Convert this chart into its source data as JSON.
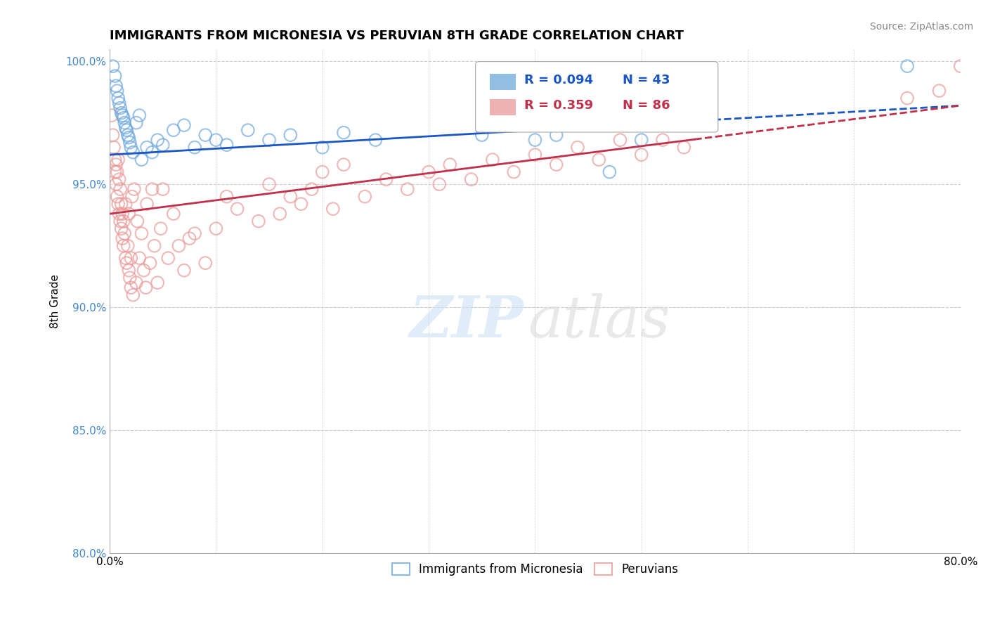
{
  "title": "IMMIGRANTS FROM MICRONESIA VS PERUVIAN 8TH GRADE CORRELATION CHART",
  "source_text": "Source: ZipAtlas.com",
  "ylabel": "8th Grade",
  "xlim": [
    0.0,
    0.8
  ],
  "ylim": [
    0.8,
    1.005
  ],
  "xticks": [
    0.0,
    0.1,
    0.2,
    0.3,
    0.4,
    0.5,
    0.6,
    0.7,
    0.8
  ],
  "xticklabels": [
    "0.0%",
    "",
    "",
    "",
    "",
    "",
    "",
    "",
    "80.0%"
  ],
  "yticks": [
    0.8,
    0.85,
    0.9,
    0.95,
    1.0
  ],
  "yticklabels": [
    "80.0%",
    "85.0%",
    "90.0%",
    "95.0%",
    "100.0%"
  ],
  "legend_blue_label": "Immigrants from Micronesia",
  "legend_pink_label": "Peruvians",
  "legend_r_blue": "R = 0.094",
  "legend_n_blue": "N = 43",
  "legend_r_pink": "R = 0.359",
  "legend_n_pink": "N = 86",
  "blue_color": "#6fa8dc",
  "pink_color": "#ea9999",
  "blue_line_color": "#1a56c4",
  "pink_line_color": "#c0304a",
  "blue_line_slope": 0.025,
  "blue_line_intercept": 0.962,
  "pink_line_slope": 0.055,
  "pink_line_intercept": 0.938,
  "blue_points_x": [
    0.003,
    0.005,
    0.006,
    0.007,
    0.008,
    0.009,
    0.01,
    0.011,
    0.012,
    0.013,
    0.014,
    0.015,
    0.016,
    0.017,
    0.018,
    0.019,
    0.02,
    0.022,
    0.025,
    0.028,
    0.03,
    0.035,
    0.04,
    0.045,
    0.05,
    0.06,
    0.07,
    0.08,
    0.09,
    0.1,
    0.11,
    0.13,
    0.15,
    0.17,
    0.2,
    0.22,
    0.25,
    0.35,
    0.4,
    0.42,
    0.47,
    0.5,
    0.75
  ],
  "blue_points_y": [
    0.998,
    0.994,
    0.99,
    0.988,
    0.985,
    0.983,
    0.981,
    0.979,
    0.978,
    0.977,
    0.975,
    0.973,
    0.972,
    0.97,
    0.969,
    0.967,
    0.965,
    0.963,
    0.975,
    0.978,
    0.96,
    0.965,
    0.963,
    0.968,
    0.966,
    0.972,
    0.974,
    0.965,
    0.97,
    0.968,
    0.966,
    0.972,
    0.968,
    0.97,
    0.965,
    0.971,
    0.968,
    0.97,
    0.968,
    0.97,
    0.955,
    0.968,
    0.998
  ],
  "pink_points_x": [
    0.002,
    0.003,
    0.004,
    0.005,
    0.005,
    0.006,
    0.006,
    0.007,
    0.007,
    0.008,
    0.008,
    0.009,
    0.009,
    0.01,
    0.01,
    0.011,
    0.011,
    0.012,
    0.012,
    0.013,
    0.013,
    0.014,
    0.015,
    0.015,
    0.016,
    0.017,
    0.018,
    0.018,
    0.019,
    0.02,
    0.02,
    0.021,
    0.022,
    0.023,
    0.025,
    0.026,
    0.028,
    0.03,
    0.032,
    0.034,
    0.035,
    0.038,
    0.04,
    0.042,
    0.045,
    0.048,
    0.05,
    0.055,
    0.06,
    0.065,
    0.07,
    0.075,
    0.08,
    0.09,
    0.1,
    0.11,
    0.12,
    0.14,
    0.15,
    0.16,
    0.17,
    0.18,
    0.19,
    0.2,
    0.21,
    0.22,
    0.24,
    0.26,
    0.28,
    0.3,
    0.31,
    0.32,
    0.34,
    0.36,
    0.38,
    0.4,
    0.42,
    0.44,
    0.46,
    0.48,
    0.5,
    0.52,
    0.54,
    0.75,
    0.78,
    0.8
  ],
  "pink_points_y": [
    0.978,
    0.97,
    0.965,
    0.96,
    0.955,
    0.95,
    0.958,
    0.945,
    0.955,
    0.942,
    0.96,
    0.938,
    0.952,
    0.935,
    0.948,
    0.942,
    0.932,
    0.938,
    0.928,
    0.935,
    0.925,
    0.93,
    0.92,
    0.942,
    0.918,
    0.925,
    0.915,
    0.938,
    0.912,
    0.92,
    0.908,
    0.945,
    0.905,
    0.948,
    0.91,
    0.935,
    0.92,
    0.93,
    0.915,
    0.908,
    0.942,
    0.918,
    0.948,
    0.925,
    0.91,
    0.932,
    0.948,
    0.92,
    0.938,
    0.925,
    0.915,
    0.928,
    0.93,
    0.918,
    0.932,
    0.945,
    0.94,
    0.935,
    0.95,
    0.938,
    0.945,
    0.942,
    0.948,
    0.955,
    0.94,
    0.958,
    0.945,
    0.952,
    0.948,
    0.955,
    0.95,
    0.958,
    0.952,
    0.96,
    0.955,
    0.962,
    0.958,
    0.965,
    0.96,
    0.968,
    0.962,
    0.968,
    0.965,
    0.985,
    0.988,
    0.998
  ]
}
